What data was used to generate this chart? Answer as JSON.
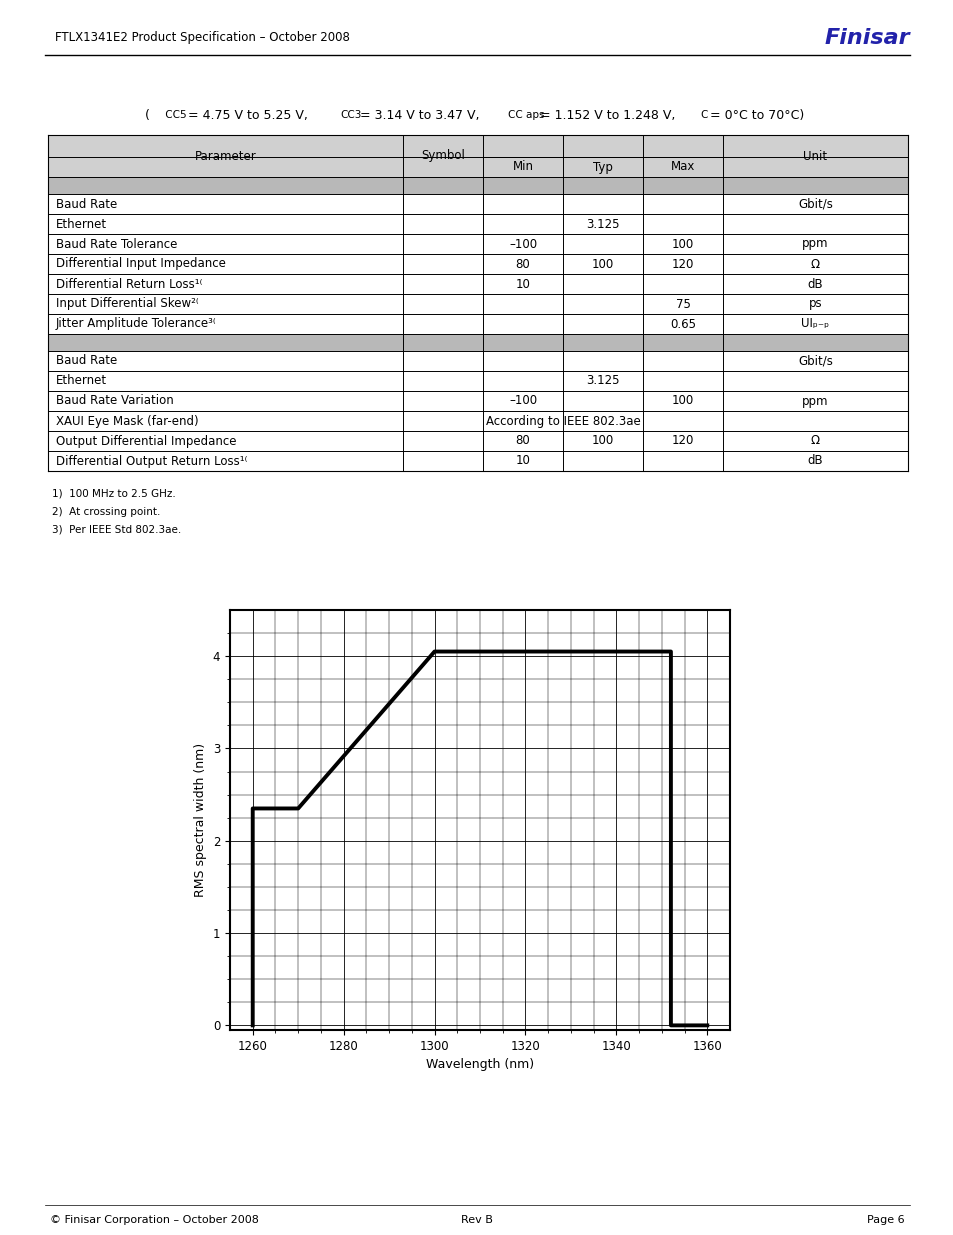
{
  "header_left": "FTLX1341E2 Product Specification – October 2008",
  "header_right": "Finisar",
  "footer_left": "© Finisar Corporation – October 2008",
  "footer_center": "Rev B",
  "footer_right": "Page 6",
  "condition_line": "(  CC5 = 4.75 V to 5.25 V,   CC3 = 3.14 V to 3.47 V,   CC aps = 1.152 V to 1.248 V,   C = 0°C to 70°C)",
  "graph_xlabel": "Wavelength (nm)",
  "graph_ylabel": "RMS spectral width (nm)",
  "graph_xlim": [
    1255,
    1365
  ],
  "graph_ylim": [
    -0.05,
    4.5
  ],
  "graph_xticks": [
    1260,
    1280,
    1300,
    1320,
    1340,
    1360
  ],
  "graph_yticks": [
    0,
    1,
    2,
    3,
    4
  ],
  "graph_shape_x": [
    1260,
    1260,
    1270,
    1300,
    1352,
    1352,
    1360
  ],
  "graph_shape_y": [
    0,
    2.35,
    2.35,
    4.05,
    4.05,
    0,
    0
  ],
  "bg_color": "#ffffff",
  "footnotes": [
    "1)  100 MHz to 2.5 GHz.",
    "2)  At crossing point.",
    "3)  Per IEEE Std 802.3ae."
  ]
}
